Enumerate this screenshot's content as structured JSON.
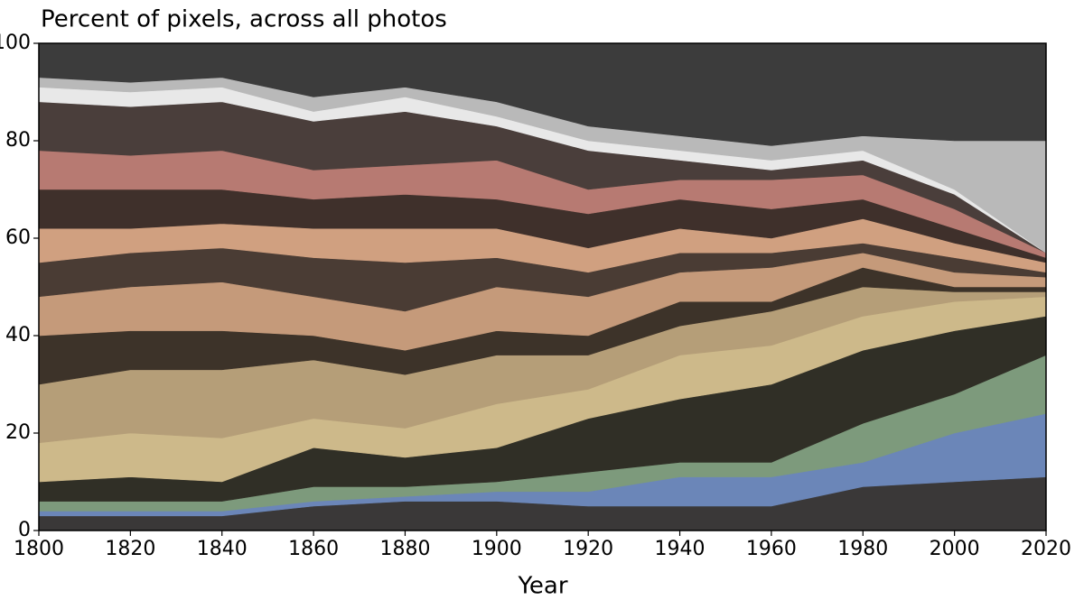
{
  "chart_data": {
    "type": "stacked_area",
    "title": "Percent of pixels, across all photos",
    "xlabel": "Year",
    "x": [
      1800,
      1820,
      1840,
      1860,
      1880,
      1900,
      1920,
      1940,
      1960,
      1980,
      2000,
      2020
    ],
    "xlim": [
      1800,
      2020
    ],
    "xticks": [
      1800,
      1820,
      1840,
      1860,
      1880,
      1900,
      1920,
      1940,
      1960,
      1980,
      2000,
      2020
    ],
    "ylim": [
      0,
      100
    ],
    "yticks": [
      0,
      20,
      40,
      60,
      80,
      100
    ],
    "series": [
      {
        "color": "#3a3838",
        "values": [
          3,
          3,
          3,
          5,
          6,
          6,
          5,
          5,
          5,
          9,
          10,
          11
        ]
      },
      {
        "color": "#6b86b8",
        "values": [
          1,
          1,
          1,
          1,
          1,
          2,
          3,
          6,
          6,
          5,
          10,
          13
        ]
      },
      {
        "color": "#7d9a7c",
        "values": [
          2,
          2,
          2,
          3,
          2,
          2,
          4,
          3,
          3,
          8,
          8,
          12
        ]
      },
      {
        "color": "#302f26",
        "values": [
          4,
          5,
          4,
          8,
          6,
          7,
          11,
          13,
          16,
          15,
          13,
          8
        ]
      },
      {
        "color": "#cdb98a",
        "values": [
          8,
          9,
          9,
          6,
          6,
          9,
          6,
          9,
          8,
          7,
          6,
          4
        ]
      },
      {
        "color": "#b59e78",
        "values": [
          12,
          13,
          14,
          12,
          11,
          10,
          7,
          6,
          7,
          6,
          2,
          1
        ]
      },
      {
        "color": "#3d3329",
        "values": [
          10,
          8,
          8,
          5,
          5,
          5,
          4,
          5,
          2,
          4,
          1,
          1
        ]
      },
      {
        "color": "#c59a7a",
        "values": [
          8,
          9,
          10,
          8,
          8,
          9,
          8,
          6,
          7,
          3,
          3,
          2
        ]
      },
      {
        "color": "#4a3c34",
        "values": [
          7,
          7,
          7,
          8,
          10,
          6,
          5,
          4,
          3,
          2,
          3,
          1
        ]
      },
      {
        "color": "#d0a080",
        "values": [
          7,
          5,
          5,
          6,
          7,
          6,
          5,
          5,
          3,
          5,
          3,
          2
        ]
      },
      {
        "color": "#3f302b",
        "values": [
          8,
          8,
          7,
          6,
          7,
          6,
          7,
          6,
          6,
          4,
          3,
          1
        ]
      },
      {
        "color": "#b77a72",
        "values": [
          8,
          7,
          8,
          6,
          6,
          8,
          5,
          4,
          6,
          5,
          4,
          1
        ]
      },
      {
        "color": "#4a3e3b",
        "values": [
          10,
          10,
          10,
          10,
          11,
          7,
          8,
          4,
          2,
          3,
          3,
          0
        ]
      },
      {
        "color": "#e8e8e8",
        "values": [
          3,
          3,
          3,
          2,
          3,
          2,
          2,
          2,
          2,
          2,
          1,
          0
        ]
      },
      {
        "color": "#b9b9b9",
        "values": [
          2,
          2,
          2,
          3,
          2,
          3,
          3,
          3,
          3,
          3,
          10,
          23
        ]
      },
      {
        "color": "#3c3c3c",
        "values": [
          7,
          8,
          7,
          11,
          9,
          12,
          17,
          19,
          21,
          19,
          20,
          20
        ]
      }
    ]
  }
}
